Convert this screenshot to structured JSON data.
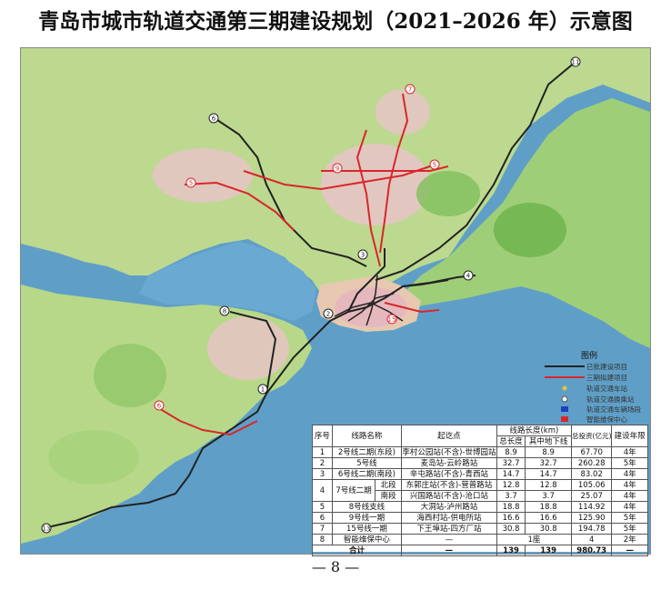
{
  "title": "青岛市城市轨道交通第三期建设规划（2021–2026 年）示意图",
  "page_number": "— 8 —",
  "legend": {
    "title": "图例",
    "items": [
      {
        "label": "已批建设项目",
        "color": "#222222",
        "kind": "line"
      },
      {
        "label": "三期拟建项目",
        "color": "#d9262a",
        "kind": "line"
      },
      {
        "label": "轨道交通车站",
        "color": "#e8c23a",
        "kind": "dot"
      },
      {
        "label": "轨道交通换乘站",
        "color": "#ffffff",
        "kind": "ring"
      },
      {
        "label": "轨道交通车辆场段",
        "color": "#1f3fbf",
        "kind": "block"
      },
      {
        "label": "智能维保中心",
        "color": "#d9262a",
        "kind": "block"
      }
    ]
  },
  "table": {
    "headers": {
      "no": "序号",
      "line": "线路名称",
      "stations": "起讫点",
      "length_group": "线路长度(km)",
      "total_length": "总长度",
      "underground": "其中地下线",
      "investment": "总投资(亿元)",
      "years": "建设年限"
    },
    "rows": [
      {
        "no": "1",
        "line": "2号线二期(东段)",
        "stations": "李村公园站(不含)-世博园站",
        "total": "8.9",
        "under": "8.9",
        "invest": "67.70",
        "years": "4年"
      },
      {
        "no": "2",
        "line": "5号线",
        "stations": "麦岛站-云岭路站",
        "total": "32.7",
        "under": "32.7",
        "invest": "260.28",
        "years": "5年"
      },
      {
        "no": "3",
        "line": "6号线二期(南段)",
        "stations": "辛屯路站(不含)-青西站",
        "total": "14.7",
        "under": "14.7",
        "invest": "83.02",
        "years": "4年"
      },
      {
        "no": "4",
        "line": "7号线二期",
        "segment": "北段",
        "stations": "东郭庄站(不含)-营普路站",
        "total": "12.8",
        "under": "12.8",
        "invest": "105.06",
        "years": "4年"
      },
      {
        "no": "",
        "line": "",
        "segment": "南段",
        "stations": "兴国路站(不含)-沧口站",
        "total": "3.7",
        "under": "3.7",
        "invest": "25.07",
        "years": "4年"
      },
      {
        "no": "5",
        "line": "8号线支线",
        "stations": "大洞站-泸州路站",
        "total": "18.8",
        "under": "18.8",
        "invest": "114.92",
        "years": "4年"
      },
      {
        "no": "6",
        "line": "9号线一期",
        "stations": "海西村站-供电所站",
        "total": "16.6",
        "under": "16.6",
        "invest": "125.90",
        "years": "5年"
      },
      {
        "no": "7",
        "line": "15号线一期",
        "stations": "下王埠站-四方厂站",
        "total": "30.8",
        "under": "30.8",
        "invest": "194.78",
        "years": "5年"
      },
      {
        "no": "8",
        "line": "智能维保中心",
        "stations": "—",
        "total": "1座",
        "under": "",
        "invest": "4",
        "years": "2年"
      }
    ],
    "total_row": {
      "label": "合计",
      "stations": "—",
      "total": "139",
      "under": "139",
      "invest": "980.73",
      "years": "—"
    }
  },
  "map": {
    "line_badges": [
      "1",
      "2",
      "3",
      "4",
      "5",
      "6",
      "7",
      "8",
      "9",
      "11",
      "13",
      "15"
    ],
    "colors": {
      "sea": "#5f9fc7",
      "land": "#b9d98a",
      "urban": "#e8c0c8",
      "existing_line": "#222222",
      "new_line": "#d9262a"
    }
  }
}
